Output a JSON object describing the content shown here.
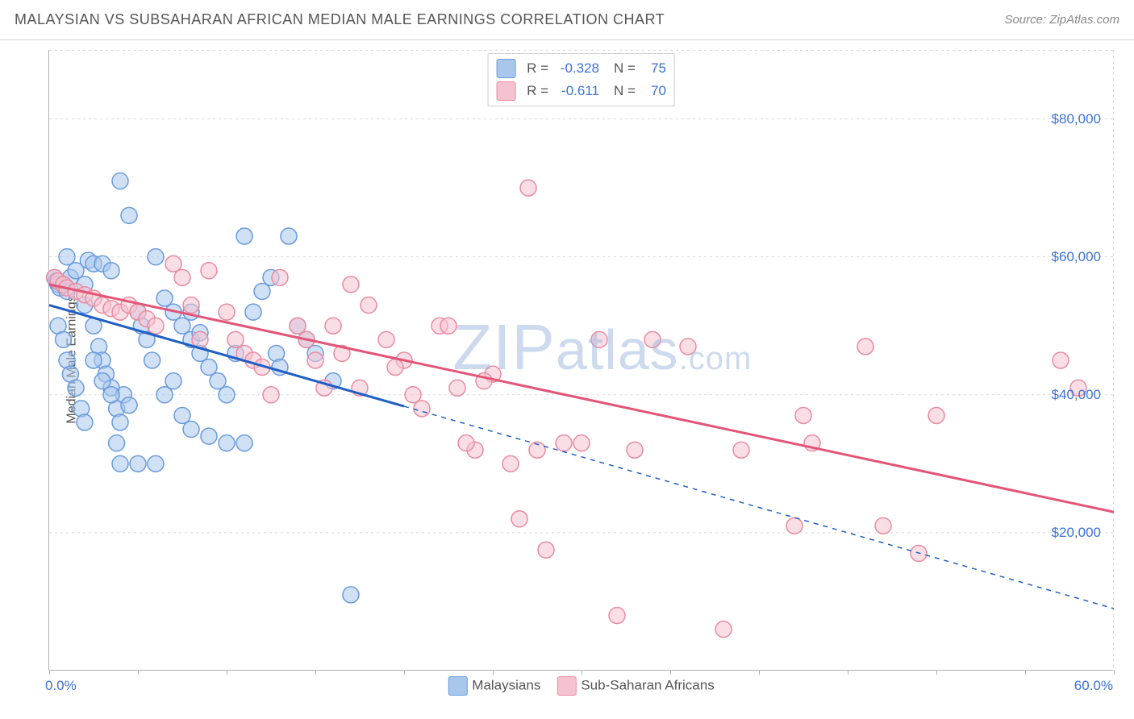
{
  "title": "MALAYSIAN VS SUBSAHARAN AFRICAN MEDIAN MALE EARNINGS CORRELATION CHART",
  "source": "Source: ZipAtlas.com",
  "watermark_parts": [
    "ZIP",
    "atlas",
    ".com"
  ],
  "chart": {
    "type": "scatter",
    "ylabel": "Median Male Earnings",
    "xlim": [
      0,
      60
    ],
    "ylim": [
      0,
      90000
    ],
    "yticks": [
      {
        "v": 20000,
        "label": "$20,000"
      },
      {
        "v": 40000,
        "label": "$40,000"
      },
      {
        "v": 60000,
        "label": "$60,000"
      },
      {
        "v": 80000,
        "label": "$80,000"
      }
    ],
    "xtick_positions": [
      0,
      5,
      10,
      15,
      20,
      25,
      30,
      35,
      40,
      45,
      50,
      55,
      60
    ],
    "xaxis_start_label": "0.0%",
    "xaxis_end_label": "60.0%",
    "grid_color": "#d8d8d8",
    "grid_dash": "3,4",
    "background_color": "#ffffff",
    "marker_radius": 10,
    "marker_stroke_width": 1.5,
    "line_width": 3,
    "dashed_line_dash": "6,6",
    "series": [
      {
        "name": "Malaysians",
        "fill": "#a9c7ec",
        "stroke": "#6a9bdc",
        "line_color": "#1f5fc4",
        "swatch_fill": "#a9c7ec",
        "swatch_stroke": "#6a9bdc",
        "R": "-0.328",
        "N": "75",
        "trend": {
          "x1": 0,
          "y1": 53000,
          "x2": 60,
          "y2": 9000,
          "solid_until_x": 20
        },
        "points": [
          [
            0.3,
            57000
          ],
          [
            0.4,
            56500
          ],
          [
            0.5,
            56000
          ],
          [
            0.6,
            55500
          ],
          [
            0.8,
            56000
          ],
          [
            1.0,
            55000
          ],
          [
            1.2,
            57000
          ],
          [
            0.5,
            50000
          ],
          [
            0.8,
            48000
          ],
          [
            1.0,
            45000
          ],
          [
            1.2,
            43000
          ],
          [
            1.5,
            41000
          ],
          [
            1.8,
            38000
          ],
          [
            2.0,
            36000
          ],
          [
            1.0,
            60000
          ],
          [
            1.5,
            58000
          ],
          [
            2.0,
            56000
          ],
          [
            2.2,
            59500
          ],
          [
            2.5,
            59000
          ],
          [
            3.0,
            59000
          ],
          [
            3.5,
            58000
          ],
          [
            2.0,
            53000
          ],
          [
            2.5,
            50000
          ],
          [
            2.8,
            47000
          ],
          [
            3.0,
            45000
          ],
          [
            3.2,
            43000
          ],
          [
            3.5,
            41000
          ],
          [
            3.8,
            38000
          ],
          [
            4.0,
            36000
          ],
          [
            4.2,
            40000
          ],
          [
            4.5,
            38500
          ],
          [
            5.0,
            52000
          ],
          [
            5.2,
            50000
          ],
          [
            5.5,
            48000
          ],
          [
            5.8,
            45000
          ],
          [
            4.0,
            71000
          ],
          [
            4.5,
            66000
          ],
          [
            6.0,
            60000
          ],
          [
            6.5,
            54000
          ],
          [
            7.0,
            52000
          ],
          [
            7.5,
            50000
          ],
          [
            8.0,
            48000
          ],
          [
            8.5,
            46000
          ],
          [
            9.0,
            44000
          ],
          [
            9.5,
            42000
          ],
          [
            10.0,
            40000
          ],
          [
            10.5,
            46000
          ],
          [
            11.0,
            63000
          ],
          [
            11.5,
            52000
          ],
          [
            12.0,
            55000
          ],
          [
            12.5,
            57000
          ],
          [
            12.8,
            46000
          ],
          [
            13.0,
            44000
          ],
          [
            13.5,
            63000
          ],
          [
            14.0,
            50000
          ],
          [
            14.5,
            48000
          ],
          [
            15.0,
            46000
          ],
          [
            16.0,
            42000
          ],
          [
            17.0,
            11000
          ],
          [
            8.0,
            52000
          ],
          [
            8.5,
            49000
          ],
          [
            9.0,
            34000
          ],
          [
            4.0,
            30000
          ],
          [
            3.8,
            33000
          ],
          [
            5.0,
            30000
          ],
          [
            6.0,
            30000
          ],
          [
            6.5,
            40000
          ],
          [
            7.0,
            42000
          ],
          [
            7.5,
            37000
          ],
          [
            8.0,
            35000
          ],
          [
            2.5,
            45000
          ],
          [
            3.0,
            42000
          ],
          [
            3.5,
            40000
          ],
          [
            10.0,
            33000
          ],
          [
            11.0,
            33000
          ]
        ]
      },
      {
        "name": "Sub-Saharan Africans",
        "fill": "#f5c3cf",
        "stroke": "#e98ba1",
        "line_color": "#e25578",
        "swatch_fill": "#f5c3cf",
        "swatch_stroke": "#e98ba1",
        "R": "-0.611",
        "N": "70",
        "trend": {
          "x1": 0,
          "y1": 56000,
          "x2": 60,
          "y2": 23000,
          "solid_until_x": 60
        },
        "points": [
          [
            0.3,
            57000
          ],
          [
            0.5,
            56500
          ],
          [
            0.8,
            56000
          ],
          [
            1.0,
            55500
          ],
          [
            1.5,
            55000
          ],
          [
            2.0,
            54500
          ],
          [
            2.5,
            54000
          ],
          [
            3.0,
            53000
          ],
          [
            3.5,
            52500
          ],
          [
            4.0,
            52000
          ],
          [
            4.5,
            53000
          ],
          [
            5.0,
            52000
          ],
          [
            5.5,
            51000
          ],
          [
            6.0,
            50000
          ],
          [
            7.0,
            59000
          ],
          [
            7.5,
            57000
          ],
          [
            8.0,
            53000
          ],
          [
            8.5,
            48000
          ],
          [
            9.0,
            58000
          ],
          [
            10.0,
            52000
          ],
          [
            10.5,
            48000
          ],
          [
            11.0,
            46000
          ],
          [
            11.5,
            45000
          ],
          [
            12.0,
            44000
          ],
          [
            12.5,
            40000
          ],
          [
            13.0,
            57000
          ],
          [
            14.0,
            50000
          ],
          [
            14.5,
            48000
          ],
          [
            15.0,
            45000
          ],
          [
            15.5,
            41000
          ],
          [
            16.0,
            50000
          ],
          [
            17.0,
            56000
          ],
          [
            18.0,
            53000
          ],
          [
            19.0,
            48000
          ],
          [
            20.0,
            45000
          ],
          [
            20.5,
            40000
          ],
          [
            21.0,
            38000
          ],
          [
            22.0,
            50000
          ],
          [
            23.0,
            41000
          ],
          [
            24.0,
            32000
          ],
          [
            25.0,
            43000
          ],
          [
            26.0,
            30000
          ],
          [
            26.5,
            22000
          ],
          [
            27.0,
            70000
          ],
          [
            27.5,
            32000
          ],
          [
            28.0,
            17500
          ],
          [
            29.0,
            33000
          ],
          [
            30.0,
            33000
          ],
          [
            31.0,
            48000
          ],
          [
            32.0,
            8000
          ],
          [
            33.0,
            32000
          ],
          [
            34.0,
            48000
          ],
          [
            36.0,
            47000
          ],
          [
            38.0,
            6000
          ],
          [
            39.0,
            32000
          ],
          [
            42.0,
            21000
          ],
          [
            42.5,
            37000
          ],
          [
            43.0,
            33000
          ],
          [
            46.0,
            47000
          ],
          [
            47.0,
            21000
          ],
          [
            49.0,
            17000
          ],
          [
            50.0,
            37000
          ],
          [
            57.0,
            45000
          ],
          [
            58.0,
            41000
          ],
          [
            22.5,
            50000
          ],
          [
            23.5,
            33000
          ],
          [
            24.5,
            42000
          ],
          [
            19.5,
            44000
          ],
          [
            17.5,
            41000
          ],
          [
            16.5,
            46000
          ]
        ]
      }
    ],
    "bottom_legend": [
      {
        "series_index": 0
      },
      {
        "series_index": 1
      }
    ]
  }
}
